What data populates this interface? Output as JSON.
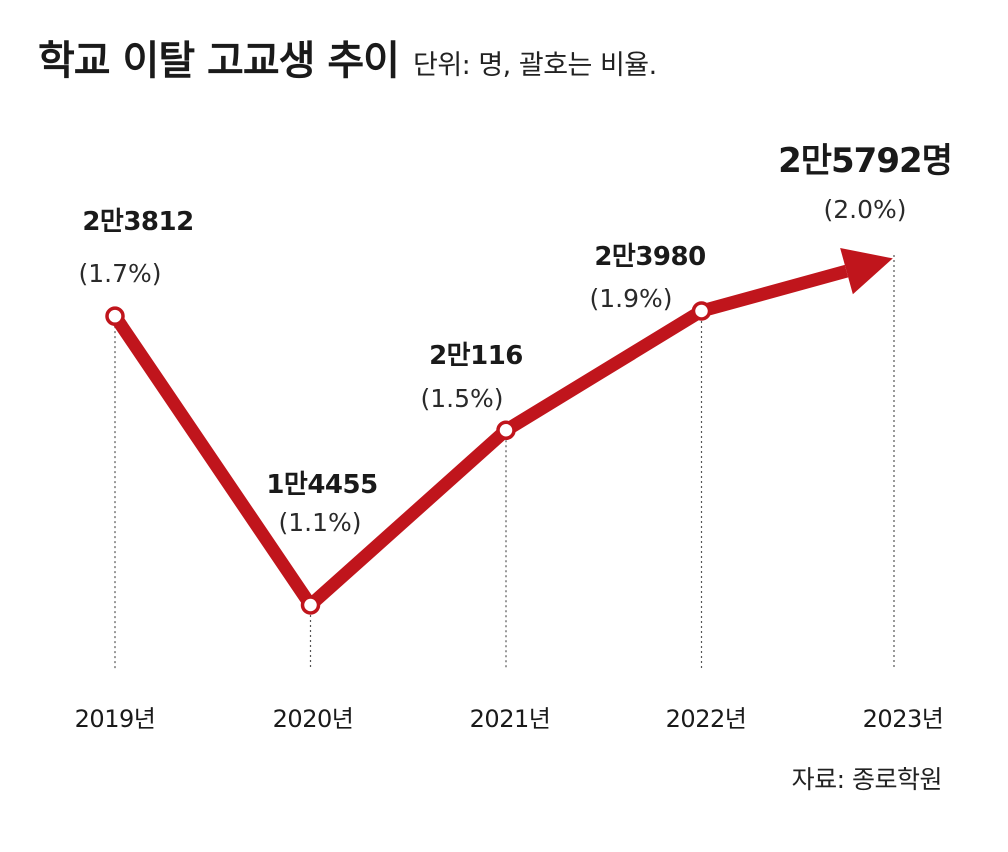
{
  "header": {
    "title": "학교 이탈 고교생 추이",
    "unit": "단위: 명, 괄호는 비율."
  },
  "source": "자료: 종로학원",
  "colors": {
    "line": "#c0151c",
    "text": "#1a1a1a",
    "guide": "#555555"
  },
  "chart_data": {
    "type": "line",
    "title": "학교 이탈 고교생 추이",
    "xlabel": "",
    "ylabel": "",
    "categories": [
      "2019년",
      "2020년",
      "2021년",
      "2022년",
      "2023년"
    ],
    "series": [
      {
        "name": "학교 이탈 고교생",
        "values": [
          23812,
          14455,
          20116,
          23980,
          25792
        ],
        "value_labels": [
          "2만3812",
          "1만4455",
          "2만116",
          "2만3980",
          "2만5792명"
        ],
        "ratio_labels": [
          "(1.7%)",
          "(1.1%)",
          "(1.5%)",
          "(1.9%)",
          "(2.0%)"
        ]
      }
    ],
    "ylim": [
      14455,
      25792
    ],
    "grid": false,
    "legend": "none"
  }
}
